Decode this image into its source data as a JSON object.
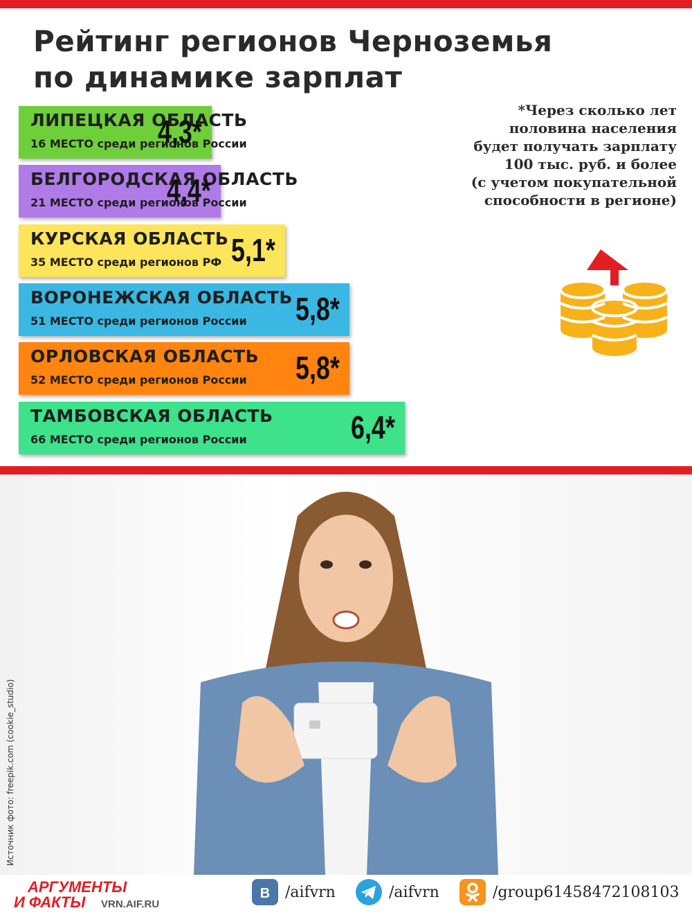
{
  "title_line1": "Рейтинг регионов Черноземья",
  "title_line2": "по динамике зарплат",
  "footnote": "*Через сколько лет половина населения будет получать зарплату 100 тыс. руб. и более (с учетом покупательной способности в регионе)",
  "footnote_lines": [
    "*Через сколько лет",
    "половина населения",
    "будет получать зарплату",
    "100 тыс. руб. и более",
    "(с учетом покупательной",
    "способности в регионе)"
  ],
  "chart_data": {
    "type": "bar",
    "orientation": "horizontal",
    "title": "Рейтинг регионов Черноземья по динамике зарплат",
    "categories": [
      "ЛИПЕЦКАЯ ОБЛАСТЬ",
      "БЕЛГОРОДСКАЯ ОБЛАСТЬ",
      "КУРСКАЯ ОБЛАСТЬ",
      "ВОРОНЕЖСКАЯ ОБЛАСТЬ",
      "ОРЛОВСКАЯ ОБЛАСТЬ",
      "ТАМБОВСКАЯ ОБЛАСТЬ"
    ],
    "values": [
      4.3,
      4.4,
      5.1,
      5.8,
      5.8,
      6.4
    ],
    "value_labels": [
      "4,3*",
      "4,4*",
      "5,1*",
      "5,8*",
      "5,8*",
      "6,4*"
    ],
    "subtitles": [
      "16 МЕСТО среди регионов России",
      "21 МЕСТО среди регионов России",
      "35 МЕСТО среди регионов РФ",
      "51 МЕСТО среди регионов России",
      "52 МЕСТО среди регионов России",
      "66 МЕСТО среди регионов России"
    ],
    "colors": [
      "#6fcf3a",
      "#b07be8",
      "#fce55a",
      "#3ab8e3",
      "#ff8410",
      "#3de28a"
    ],
    "grid": false,
    "legend": "none"
  },
  "photo_credit": "Источник фото: freepik.com (cookie_studio)",
  "logo": {
    "line1": "АРГУМЕНТЫ",
    "line2": "И ФАКТЫ",
    "site": "VRN.AIF.RU"
  },
  "social": [
    {
      "icon": "vk-icon",
      "handle": "/aifvrn",
      "color": "#4a76a8"
    },
    {
      "icon": "telegram-icon",
      "handle": "/aifvrn",
      "color": "#2aa3dc"
    },
    {
      "icon": "odnoklassniki-icon",
      "handle": "/group61458472108103",
      "color": "#f7931e"
    }
  ],
  "colors": {
    "accent_red": "#e01e24",
    "coin_gold": "#f7b21a"
  }
}
